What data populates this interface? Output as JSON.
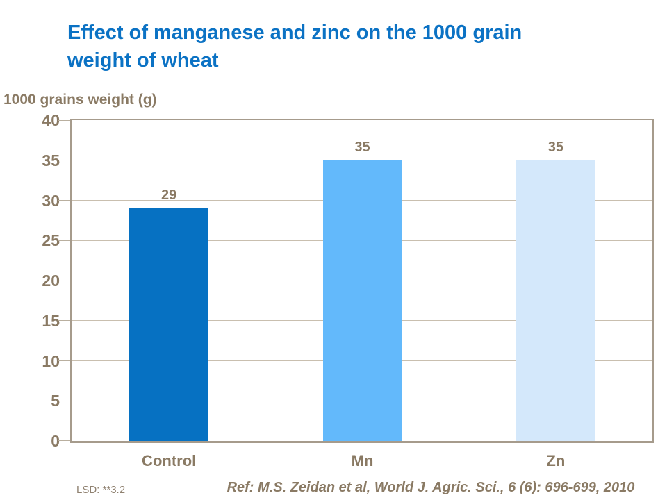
{
  "title": {
    "text": "Effect of manganese and zinc on the 1000 grain weight of wheat",
    "lines": [
      "Effect of manganese and zinc on the 1000 grain",
      "weight of wheat"
    ],
    "color": "#0b72c4"
  },
  "chart_data": {
    "type": "bar",
    "title": "Effect of manganese and zinc on the 1000 grain weight of wheat",
    "ylabel": "1000 grains weight (g)",
    "xlabel": "",
    "categories": [
      "Control",
      "Mn",
      "Zn"
    ],
    "values": [
      29,
      35,
      35
    ],
    "data_labels": [
      "29",
      "35",
      "35"
    ],
    "bar_colors": [
      "#0671c2",
      "#63b9fb",
      "#d4e8fb"
    ],
    "ylim": [
      0,
      40
    ],
    "yticks": [
      0,
      5,
      10,
      15,
      20,
      25,
      30,
      35,
      40
    ],
    "grid": true,
    "legend": "none"
  },
  "footer": {
    "lsd": "LSD: **3.2",
    "reference": "Ref: M.S. Zeidan et al, World J. Agric. Sci., 6 (6): 696-699, 2010"
  },
  "colors": {
    "background": "#ffffff",
    "title_blue": "#0b72c4",
    "text_brown": "#8a7a64",
    "lsd_text": "#8f8170",
    "gridline": "#c9bfaf",
    "axis_border": "#a69b8c"
  }
}
